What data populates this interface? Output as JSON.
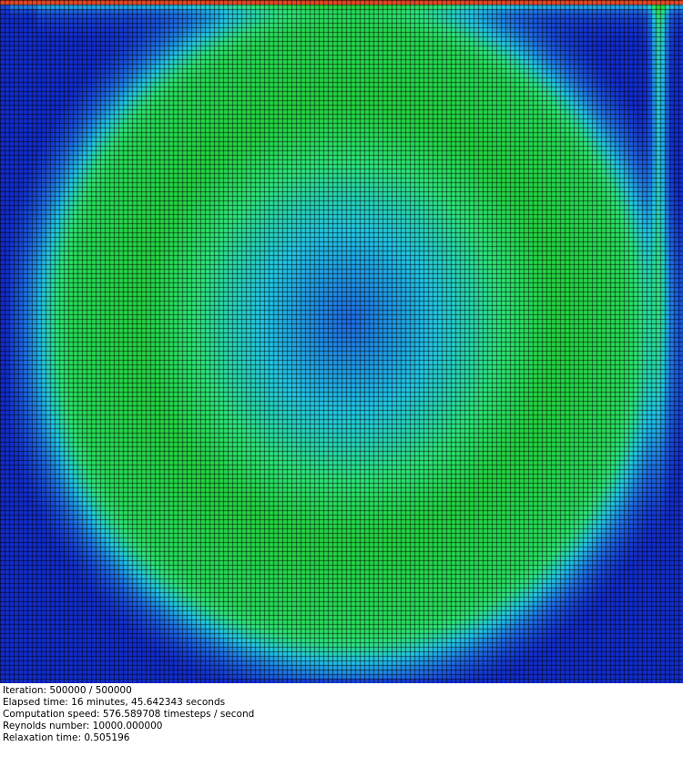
{
  "simulation": {
    "type": "lid-driven cavity flow velocity magnitude field",
    "colormap": [
      "#1020c8",
      "#1e6fe6",
      "#22c8e6",
      "#2ee67a",
      "#22d238",
      "#b4e628",
      "#f0e628",
      "#f08228",
      "#e62222"
    ],
    "background_color": "#1428b4",
    "grid_line_color": "#000000"
  },
  "status": {
    "iteration": "Iteration: 500000 / 500000",
    "elapsed": "Elapsed time: 16 minutes, 45.642343 seconds",
    "speed": "Computation speed: 576.589708 timesteps / second",
    "reynolds": "Reynolds number: 10000.000000",
    "relaxation": "Relaxation time: 0.505196"
  }
}
